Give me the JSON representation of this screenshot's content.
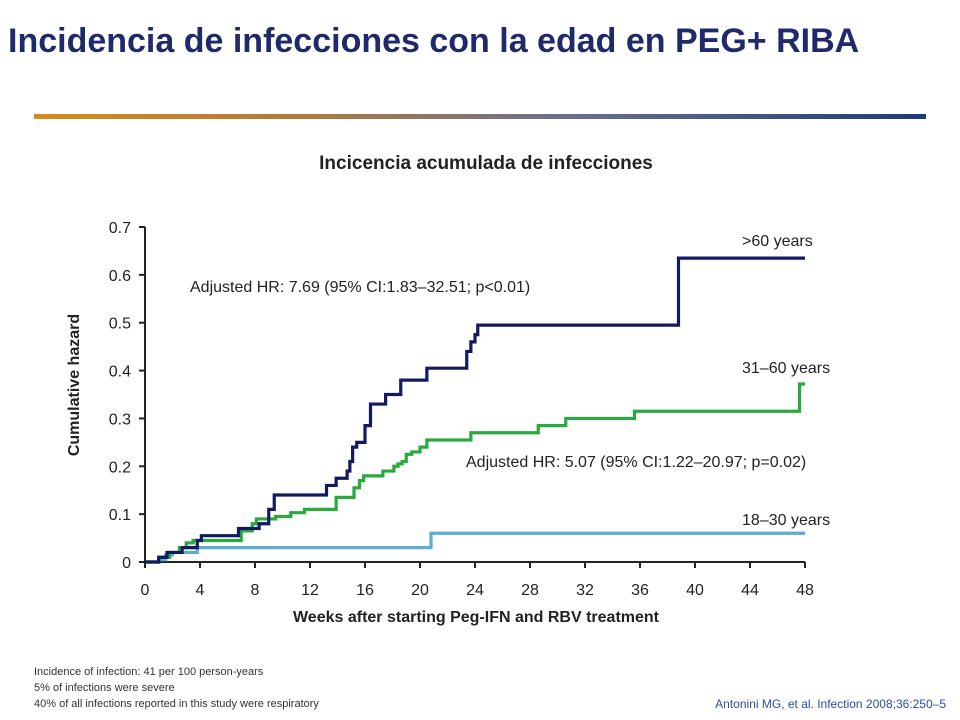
{
  "slide": {
    "title": "Incidencia de infecciones con la edad en PEG+ RIBA",
    "footnotes": [
      "Incidence of infection: 41 per 100 person-years",
      "5% of infections were severe",
      "40% of all infections reported in this study were respiratory"
    ],
    "citation": "Antonini MG, et al. Infection 2008;36:250–5"
  },
  "colors": {
    "title": "#1f2a6b",
    "gt60": "#141a5e",
    "31to60": "#2aaa3e",
    "18to30": "#5aaed0"
  },
  "chart_data": {
    "type": "line",
    "step": true,
    "title": "Incicencia acumulada de infecciones",
    "xlabel": "Weeks after starting Peg-IFN and RBV treatment",
    "ylabel": "Cumulative hazard",
    "xlim": [
      0,
      48
    ],
    "ylim": [
      0,
      0.7
    ],
    "xticks": [
      0,
      4,
      8,
      12,
      16,
      20,
      24,
      28,
      32,
      36,
      40,
      44,
      48
    ],
    "yticks": [
      0,
      0.1,
      0.2,
      0.3,
      0.4,
      0.5,
      0.6,
      0.7
    ],
    "ytick_labels": [
      "0",
      "0.1",
      "0.2",
      "0.3",
      "0.4",
      "0.5",
      "0.6",
      "0.7"
    ],
    "grid": false,
    "series": [
      {
        "name": ">60 years",
        "color": "#141a5e",
        "x": [
          0,
          1.0,
          1.6,
          2.7,
          3.8,
          4.1,
          6.8,
          8.3,
          9.0,
          9.4,
          13.2,
          13.9,
          14.7,
          14.9,
          15.1,
          15.4,
          16.0,
          16.4,
          17.5,
          18.6,
          19.0,
          20.5,
          23.4,
          23.7,
          24.0,
          24.2,
          38.8,
          48.0
        ],
        "y": [
          0,
          0.01,
          0.02,
          0.03,
          0.045,
          0.055,
          0.07,
          0.08,
          0.11,
          0.14,
          0.16,
          0.175,
          0.19,
          0.21,
          0.24,
          0.25,
          0.285,
          0.33,
          0.35,
          0.38,
          0.38,
          0.405,
          0.44,
          0.46,
          0.475,
          0.495,
          0.635,
          0.635
        ]
      },
      {
        "name": "31–60 years",
        "color": "#2aaa3e",
        "x": [
          0,
          1.0,
          1.8,
          2.5,
          3.0,
          3.5,
          7.0,
          7.8,
          8.1,
          9.5,
          10.6,
          11.6,
          13.9,
          15.2,
          15.6,
          15.9,
          17.3,
          18.1,
          18.4,
          18.7,
          19.0,
          19.4,
          20.0,
          20.5,
          23.7,
          28.6,
          30.6,
          35.6,
          47.6,
          48.0
        ],
        "y": [
          0,
          0.01,
          0.02,
          0.03,
          0.04,
          0.045,
          0.065,
          0.08,
          0.09,
          0.095,
          0.103,
          0.11,
          0.135,
          0.155,
          0.17,
          0.18,
          0.19,
          0.2,
          0.205,
          0.21,
          0.225,
          0.23,
          0.24,
          0.255,
          0.27,
          0.285,
          0.3,
          0.315,
          0.372,
          0.372
        ],
        "annotation": "Adjusted HR: 5.07 (95% CI:1.22–20.97; p=0.02)"
      },
      {
        "name": "18–30 years",
        "color": "#5aaed0",
        "x": [
          0,
          1.0,
          1.5,
          2.0,
          2.5,
          3.8,
          20.8,
          48.0
        ],
        "y": [
          0,
          0.005,
          0.015,
          0.02,
          0.02,
          0.03,
          0.06,
          0.06
        ]
      }
    ],
    "annotations": [
      {
        "text": "Adjusted HR: 7.69 (95% CI:1.83–32.51; p<0.01)"
      }
    ]
  }
}
